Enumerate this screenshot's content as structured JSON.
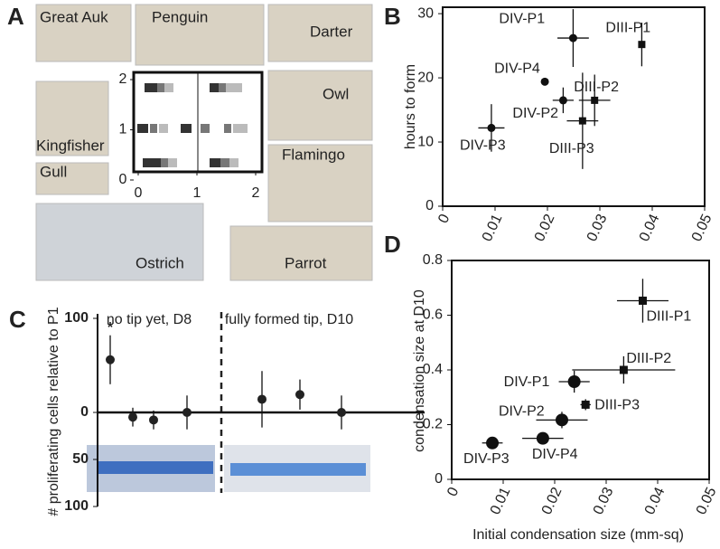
{
  "panel_a": {
    "panel": "A",
    "birds": [
      "Great Auk",
      "Penguin",
      "Darter",
      "Kingfisher",
      "Owl",
      "Gull",
      "Flamingo",
      "Ostrich",
      "Parrot"
    ],
    "grid_xticks": [
      0,
      1,
      2
    ],
    "grid_yticks": [
      0,
      1,
      2
    ]
  },
  "chart_data": [
    {
      "type": "scatter",
      "panel": "B",
      "y_label": "hours to form",
      "xlim": [
        0,
        0.05
      ],
      "xticks": [
        0,
        0.01,
        0.02,
        0.03,
        0.04,
        0.05
      ],
      "ylim": [
        0,
        31
      ],
      "yticks": [
        0,
        10,
        20,
        30
      ],
      "points": [
        {
          "label": "DIV-P1",
          "marker": "circle",
          "x": 0.0249,
          "y": 26.2,
          "xerr": 0.003,
          "yerr": 4.5
        },
        {
          "label": "DIII-P1",
          "marker": "square",
          "x": 0.038,
          "y": 25.2,
          "yerr": 3.4
        },
        {
          "label": "DIV-P4",
          "marker": "circle",
          "x": 0.0195,
          "y": 19.4
        },
        {
          "label": "DIV-P2",
          "marker": "circle",
          "x": 0.023,
          "y": 16.5,
          "xerr": 0.002,
          "yerr": 2
        },
        {
          "label": "DIII-P2",
          "marker": "square",
          "x": 0.029,
          "y": 16.5,
          "xerr": 0.003,
          "yerr": 4
        },
        {
          "label": "DIII-P3",
          "marker": "square",
          "x": 0.0267,
          "y": 13.3,
          "xerr": 0.003,
          "yerr": 7.5
        },
        {
          "label": "DIV-P3",
          "marker": "circle",
          "x": 0.0093,
          "y": 12.2,
          "xerr": 0.0025,
          "yerr": 3.7
        }
      ]
    },
    {
      "type": "dot",
      "panel": "C",
      "y_label": "# proliferating cells relative to P1",
      "ylim": [
        -100,
        100
      ],
      "yticks": [
        100,
        0,
        {
          "value": -50,
          "label": "50"
        },
        {
          "value": -100,
          "label": "100"
        }
      ],
      "significance": "*",
      "groups": [
        {
          "label": "no tip yet, D8",
          "values": [
            56,
            -5,
            -8,
            0
          ],
          "errors": [
            26,
            10,
            10,
            18
          ]
        },
        {
          "label": "fully formed tip, D10",
          "values": [
            14,
            19,
            0
          ],
          "errors": [
            30,
            16,
            18
          ]
        }
      ]
    },
    {
      "type": "scatter",
      "panel": "D",
      "y_label": "condensation size at D10",
      "x_label": "Initial condensation size (mm-sq)",
      "xlim": [
        0,
        0.05
      ],
      "xticks": [
        0,
        0.01,
        0.02,
        0.03,
        0.04,
        0.05
      ],
      "ylim": [
        0,
        0.8
      ],
      "yticks": [
        0,
        0.2,
        0.4,
        0.6,
        0.8
      ],
      "points": [
        {
          "label": "DIII-P1",
          "marker": "square",
          "x": 0.0371,
          "y": 0.653,
          "xerr": 0.005,
          "yerr": 0.08
        },
        {
          "label": "DIII-P2",
          "marker": "square",
          "x": 0.0334,
          "y": 0.4,
          "xerr": 0.01,
          "yerr": 0.05
        },
        {
          "label": "DIV-P1",
          "marker": "circle",
          "x": 0.0238,
          "y": 0.357,
          "xerr": 0.003,
          "yerr": 0.04
        },
        {
          "label": "DIII-P3",
          "marker": "square",
          "x": 0.026,
          "y": 0.273,
          "xerr": 0.001,
          "yerr": 0.02
        },
        {
          "label": "DIV-P2",
          "marker": "circle",
          "x": 0.0214,
          "y": 0.217,
          "xerr": 0.005,
          "yerr": 0.03
        },
        {
          "label": "DIV-P4",
          "marker": "circle",
          "x": 0.0177,
          "y": 0.15,
          "xerr": 0.004
        },
        {
          "label": "DIV-P3",
          "marker": "circle",
          "x": 0.0079,
          "y": 0.133,
          "xerr": 0.002
        }
      ]
    }
  ]
}
